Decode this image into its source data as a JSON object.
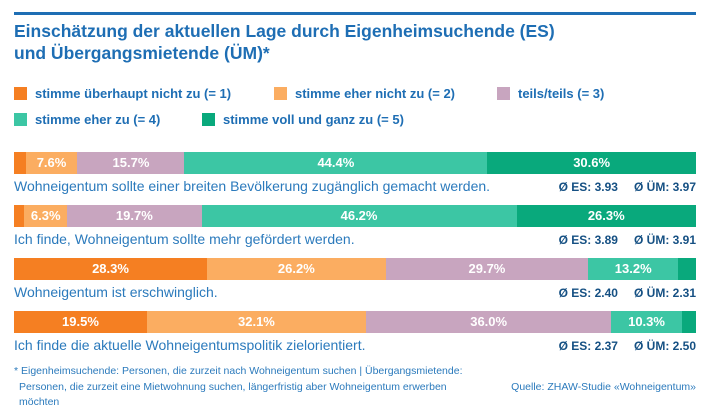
{
  "header": {
    "title_line1": "Einschätzung der aktuellen Lage durch Eigenheimsuchende (ES)",
    "title_line2": "und Übergangsmietende (ÜM)*",
    "accent_color": "#1e6eb4"
  },
  "chart_data": {
    "type": "bar",
    "variant": "horizontal-stacked",
    "unit": "percent",
    "xlim": [
      0,
      100
    ],
    "grid": false,
    "legend_position": "top",
    "legend_rows": [
      [
        0,
        1,
        2
      ],
      [
        3,
        4
      ]
    ],
    "title": "Einschätzung der aktuellen Lage durch Eigenheimsuchende (ES) und Übergangsmietende (ÜM)*",
    "categories": [
      "Wohneigentum sollte einer breiten Bevölkerung zugänglich gemacht werden.",
      "Ich finde, Wohneigentum sollte mehr gefördert werden.",
      "Wohneigentum ist erschwinglich.",
      "Ich finde die aktuelle Wohneigentumspolitik zielorientiert."
    ],
    "series": [
      {
        "name": "stimme überhaupt nicht zu (= 1)",
        "color": "#f57f22",
        "values": [
          1.7,
          1.5,
          28.3,
          19.5
        ]
      },
      {
        "name": "stimme eher nicht zu (= 2)",
        "color": "#fbad61",
        "values": [
          7.6,
          6.3,
          26.2,
          32.1
        ]
      },
      {
        "name": "teils/teils (= 3)",
        "color": "#c8a5bf",
        "values": [
          15.7,
          19.7,
          29.7,
          36.0
        ]
      },
      {
        "name": "stimme eher zu (= 4)",
        "color": "#3cc6a4",
        "values": [
          44.4,
          46.2,
          13.2,
          10.3
        ]
      },
      {
        "name": "stimme voll und ganz zu (= 5)",
        "color": "#09a97c",
        "values": [
          30.6,
          26.3,
          2.6,
          2.1
        ]
      }
    ],
    "value_labels": [
      [
        "",
        "7.6%",
        "15.7%",
        "44.4%",
        "30.6%"
      ],
      [
        "",
        "6.3%",
        "19.7%",
        "46.2%",
        "26.3%"
      ],
      [
        "28.3%",
        "26.2%",
        "29.7%",
        "13.2%",
        ""
      ],
      [
        "19.5%",
        "32.1%",
        "36.0%",
        "10.3%",
        ""
      ]
    ],
    "means": [
      {
        "es": 3.93,
        "um": 3.97
      },
      {
        "es": 3.89,
        "um": 3.91
      },
      {
        "es": 2.4,
        "um": 2.31
      },
      {
        "es": 2.37,
        "um": 2.5
      }
    ],
    "mean_labels": [
      [
        "Ø ES: 3.93",
        "Ø ÜM: 3.97"
      ],
      [
        "Ø ES: 3.89",
        "Ø ÜM: 3.91"
      ],
      [
        "Ø ES: 2.40",
        "Ø ÜM: 2.31"
      ],
      [
        "Ø ES: 2.37",
        "Ø ÜM: 2.50"
      ]
    ]
  },
  "footnote": {
    "line1": "* Eigenheimsuchende: Personen, die zurzeit nach Wohneigentum suchen | Übergangsmietende:",
    "line2": "Personen, die zurzeit eine Mietwohnung suchen, längerfristig aber Wohneigentum erwerben möchten"
  },
  "source": "Quelle: ZHAW-Studie «Wohneigentum»"
}
